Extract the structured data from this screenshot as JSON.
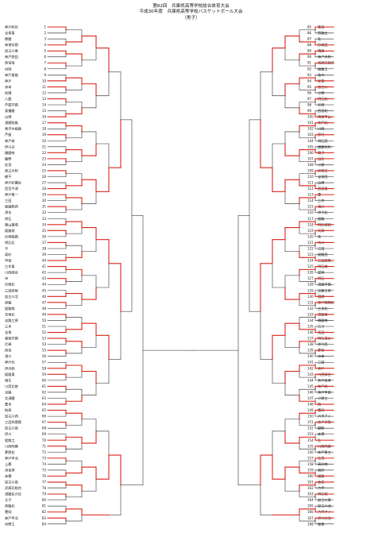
{
  "header": {
    "line1": "第82回　兵庫県高等学校総合体育大会",
    "line2": "平成30年度　兵庫県高等学校バスケットボール大会",
    "line3": "（男子）"
  },
  "colors": {
    "winner_line": "#d9261c",
    "bracket_line": "#222222"
  },
  "left_teams": [
    {
      "n": "1",
      "name": "神戸科技"
    },
    {
      "n": "2",
      "name": "宝塚東"
    },
    {
      "n": "3",
      "name": "飾磨"
    },
    {
      "n": "4",
      "name": "神港学園"
    },
    {
      "n": "5",
      "name": "加古川東"
    },
    {
      "n": "6",
      "name": "神戸野田"
    },
    {
      "n": "7",
      "name": "西宮南"
    },
    {
      "n": "8",
      "name": "村岡"
    },
    {
      "n": "9",
      "name": "神戸星稜"
    },
    {
      "n": "10",
      "name": "神戸"
    },
    {
      "n": "11",
      "name": "洲本"
    },
    {
      "n": "12",
      "name": "松陽"
    },
    {
      "n": "13",
      "name": "八鹿"
    },
    {
      "n": "14",
      "name": "芦屋学園"
    },
    {
      "n": "15",
      "name": "東播磨"
    },
    {
      "n": "16",
      "name": "山崎"
    },
    {
      "n": "17",
      "name": "須磨翔風"
    },
    {
      "n": "18",
      "name": "東洋大姫路"
    },
    {
      "n": "19",
      "name": "芦屋"
    },
    {
      "n": "20",
      "name": "神戸商"
    },
    {
      "n": "21",
      "name": "伊川谷"
    },
    {
      "n": "22",
      "name": "播磨南"
    },
    {
      "n": "23",
      "name": "龍野"
    },
    {
      "n": "24",
      "name": "佐用"
    },
    {
      "n": "25",
      "name": "県立大附"
    },
    {
      "n": "26",
      "name": "網干"
    },
    {
      "n": "27",
      "name": "神戸鈴蘭台"
    },
    {
      "n": "28",
      "name": "西宮今津"
    },
    {
      "n": "29",
      "name": "神戸第一"
    },
    {
      "n": "30",
      "name": "三田"
    },
    {
      "n": "31",
      "name": "姫路飾西"
    },
    {
      "n": "32",
      "name": "津名"
    },
    {
      "n": "33",
      "name": "明石"
    },
    {
      "n": "34",
      "name": "篠山鳳鳴"
    },
    {
      "n": "35",
      "name": "姫路南"
    },
    {
      "n": "36",
      "name": "尼崎稲園"
    },
    {
      "n": "37",
      "name": "明石北"
    },
    {
      "n": "38",
      "name": "平"
    },
    {
      "n": "39",
      "name": "高砂"
    },
    {
      "n": "40",
      "name": "甲南"
    },
    {
      "n": "41",
      "name": "三木東"
    },
    {
      "n": "42",
      "name": "川西緑台"
    },
    {
      "n": "43",
      "name": "市"
    },
    {
      "n": "44",
      "name": "尼崎北"
    },
    {
      "n": "45",
      "name": "三田西陵"
    },
    {
      "n": "46",
      "name": "加古川北"
    },
    {
      "n": "47",
      "name": "西脇"
    },
    {
      "n": "48",
      "name": "姫路商"
    },
    {
      "n": "49",
      "name": "宝塚北"
    },
    {
      "n": "50",
      "name": "淡路三原"
    },
    {
      "n": "51",
      "name": "三木"
    },
    {
      "n": "52",
      "name": "宝塚"
    },
    {
      "n": "53",
      "name": "報徳学園"
    },
    {
      "n": "54",
      "name": "尼崎"
    },
    {
      "n": "55",
      "name": "西宮"
    },
    {
      "n": "56",
      "name": "滝川"
    },
    {
      "n": "57",
      "name": "神戸北"
    },
    {
      "n": "58",
      "name": "伊丹西"
    },
    {
      "n": "59",
      "name": "姫路東"
    },
    {
      "n": "60",
      "name": "相生"
    },
    {
      "n": "61",
      "name": "川西北陵"
    },
    {
      "n": "62",
      "name": "淡路"
    },
    {
      "n": "63",
      "name": "北須磨"
    },
    {
      "n": "64",
      "name": "葺合"
    },
    {
      "n": "65",
      "name": "柏原"
    },
    {
      "n": "66",
      "name": "加古川西"
    },
    {
      "n": "67",
      "name": "三田祥雲館"
    },
    {
      "n": "68",
      "name": "加古川南"
    },
    {
      "n": "69",
      "name": "伊川"
    },
    {
      "n": "70",
      "name": "姫路工"
    },
    {
      "n": "71",
      "name": "川西明峰"
    },
    {
      "n": "72",
      "name": "夢野台"
    },
    {
      "n": "73",
      "name": "神戸甲北"
    },
    {
      "n": "74",
      "name": "上郡"
    },
    {
      "n": "75",
      "name": "洲本実"
    },
    {
      "n": "76",
      "name": "赤穂"
    },
    {
      "n": "77",
      "name": "加古川南"
    },
    {
      "n": "78",
      "name": "武庫荘総合"
    },
    {
      "n": "79",
      "name": "須磨友が丘"
    },
    {
      "n": "80",
      "name": "太子"
    },
    {
      "n": "81",
      "name": "西脇北"
    },
    {
      "n": "82",
      "name": "豊岡"
    },
    {
      "n": "83",
      "name": "神戸甲北"
    },
    {
      "n": "84",
      "name": "村野工"
    }
  ],
  "right_teams": [
    {
      "n": "85",
      "name": "育英"
    },
    {
      "n": "86",
      "name": "西脇工"
    },
    {
      "n": "87",
      "name": "社"
    },
    {
      "n": "88",
      "name": "尼崎西"
    },
    {
      "n": "89",
      "name": "鳴尾"
    },
    {
      "n": "90",
      "name": "神戸大附"
    },
    {
      "n": "91",
      "name": "武庫荘総合"
    },
    {
      "n": "92",
      "name": "姫路工"
    },
    {
      "n": "93",
      "name": "香寺"
    },
    {
      "n": "94",
      "name": "家島"
    },
    {
      "n": "95",
      "name": "加古川"
    },
    {
      "n": "96",
      "name": "小野"
    },
    {
      "n": "97",
      "name": "明石北"
    },
    {
      "n": "98",
      "name": "尼崎"
    },
    {
      "n": "99",
      "name": "西宮北"
    },
    {
      "n": "100",
      "name": "西宮甲山"
    },
    {
      "n": "101",
      "name": "神戸北"
    },
    {
      "n": "102",
      "name": "川西"
    },
    {
      "n": "103",
      "name": "伊丹"
    },
    {
      "n": "104",
      "name": "明石西"
    },
    {
      "n": "105",
      "name": "姫路別所"
    },
    {
      "n": "106",
      "name": "舞子"
    },
    {
      "n": "107",
      "name": "出石"
    },
    {
      "n": "108",
      "name": "小野"
    },
    {
      "n": "109",
      "name": "尼崎工"
    },
    {
      "n": "110",
      "name": "宝塚西"
    },
    {
      "n": "111",
      "name": "山崎"
    },
    {
      "n": "112",
      "name": "西宮東"
    },
    {
      "n": "113",
      "name": "豊"
    },
    {
      "n": "114",
      "name": "三木"
    },
    {
      "n": "115",
      "name": "滝川"
    },
    {
      "n": "116",
      "name": "伊丹北"
    },
    {
      "n": "117",
      "name": "姫路"
    },
    {
      "n": "118",
      "name": "明石城西"
    },
    {
      "n": "119",
      "name": "兵庫"
    },
    {
      "n": "120",
      "name": "北"
    },
    {
      "n": "121",
      "name": "市川"
    },
    {
      "n": "122",
      "name": "三田"
    },
    {
      "n": "123",
      "name": "姫路西"
    },
    {
      "n": "124",
      "name": "三田西陵"
    },
    {
      "n": "125",
      "name": "明石南"
    },
    {
      "n": "126",
      "name": "星陵"
    },
    {
      "n": "127",
      "name": "明石"
    },
    {
      "n": "128",
      "name": "須磨学園"
    },
    {
      "n": "129",
      "name": "淡路三原"
    },
    {
      "n": "130",
      "name": "国際"
    },
    {
      "n": "131",
      "name": "神戸国際附"
    },
    {
      "n": "132",
      "name": "三木北"
    },
    {
      "n": "133",
      "name": "須磨東"
    },
    {
      "n": "134",
      "name": "播磨南"
    },
    {
      "n": "135",
      "name": "仁川"
    },
    {
      "n": "136",
      "name": "長田"
    },
    {
      "n": "137",
      "name": "明石清水"
    },
    {
      "n": "138",
      "name": "伊丹西"
    },
    {
      "n": "139",
      "name": "夢前"
    },
    {
      "n": "140",
      "name": "洲本"
    },
    {
      "n": "141",
      "name": "三田"
    },
    {
      "n": "142",
      "name": "神戸"
    },
    {
      "n": "143",
      "name": "川西緑台"
    },
    {
      "n": "144",
      "name": "神戸高専"
    },
    {
      "n": "145",
      "name": "神戸北"
    },
    {
      "n": "146",
      "name": "神戸甲南"
    },
    {
      "n": "147",
      "name": "小野工"
    },
    {
      "n": "148",
      "name": "西"
    },
    {
      "n": "149",
      "name": "豊岡"
    },
    {
      "n": "150",
      "name": "六甲アイ"
    },
    {
      "n": "151",
      "name": "神戸学院"
    },
    {
      "n": "152",
      "name": "御影"
    },
    {
      "n": "153",
      "name": "赤穂"
    },
    {
      "n": "154",
      "name": "社"
    },
    {
      "n": "155",
      "name": "川西明峰"
    },
    {
      "n": "156",
      "name": "神戸第三"
    },
    {
      "n": "157",
      "name": "有馬"
    },
    {
      "n": "158",
      "name": "高砂南"
    },
    {
      "n": "159",
      "name": "高砂"
    },
    {
      "n": "160",
      "name": "姫路"
    },
    {
      "n": "161",
      "name": "香住"
    },
    {
      "n": "162",
      "name": "六甲"
    },
    {
      "n": "163",
      "name": "明石城"
    },
    {
      "n": "164",
      "name": "加古川東"
    },
    {
      "n": "165",
      "name": "加古川北"
    },
    {
      "n": "166",
      "name": "六甲アイ"
    },
    {
      "n": "167",
      "name": "伊川谷北"
    },
    {
      "n": "168",
      "name": "報徳"
    }
  ]
}
